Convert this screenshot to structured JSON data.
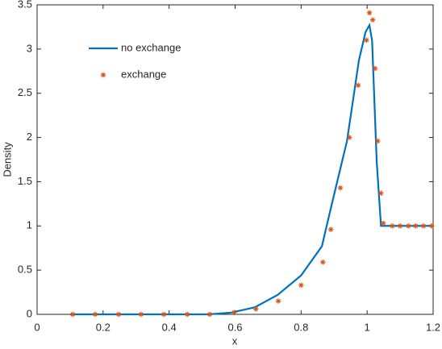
{
  "chart_data": {
    "type": "line-scatter",
    "x_label": "x",
    "y_label": "Density",
    "xlim": [
      0,
      1.2
    ],
    "xticks": [
      0,
      0.2,
      0.4,
      0.6,
      0.8,
      1,
      1.2
    ],
    "ylim": [
      0,
      3.5
    ],
    "yticks": [
      0,
      0.5,
      1,
      1.5,
      2,
      2.5,
      3,
      3.5
    ],
    "legend": "upper-left",
    "series": [
      {
        "name": "no exchange",
        "kind": "line",
        "color": "#0072bd",
        "x": [
          0.1,
          0.17,
          0.24,
          0.31,
          0.38,
          0.45,
          0.52,
          0.589,
          0.66,
          0.729,
          0.8,
          0.863,
          0.89,
          0.939,
          0.975,
          0.995,
          1.007,
          1.015,
          1.029,
          1.042,
          1.061,
          1.2
        ],
        "values": [
          0,
          0,
          0,
          0,
          0,
          0,
          0,
          0.02,
          0.08,
          0.22,
          0.44,
          0.77,
          1.2,
          1.96,
          2.87,
          3.19,
          3.27,
          3.1,
          1.73,
          1.0,
          1.0,
          1.0
        ]
      },
      {
        "name": "exchange",
        "kind": "scatter",
        "color": "#d95319",
        "x": [
          0.108,
          0.176,
          0.247,
          0.315,
          0.384,
          0.455,
          0.523,
          0.597,
          0.663,
          0.731,
          0.8,
          0.866,
          0.89,
          0.919,
          0.946,
          0.973,
          0.998,
          1.007,
          1.017,
          1.024,
          1.032,
          1.042,
          1.049,
          1.076,
          1.1,
          1.125,
          1.147,
          1.171,
          1.196
        ],
        "values": [
          0,
          0,
          0,
          0,
          0,
          0,
          0,
          0.02,
          0.06,
          0.15,
          0.33,
          0.59,
          0.96,
          1.43,
          2.0,
          2.59,
          3.1,
          3.41,
          3.33,
          2.78,
          1.96,
          1.37,
          1.03,
          1.0,
          1.0,
          1.0,
          1.0,
          1.0,
          1.0
        ]
      }
    ]
  }
}
